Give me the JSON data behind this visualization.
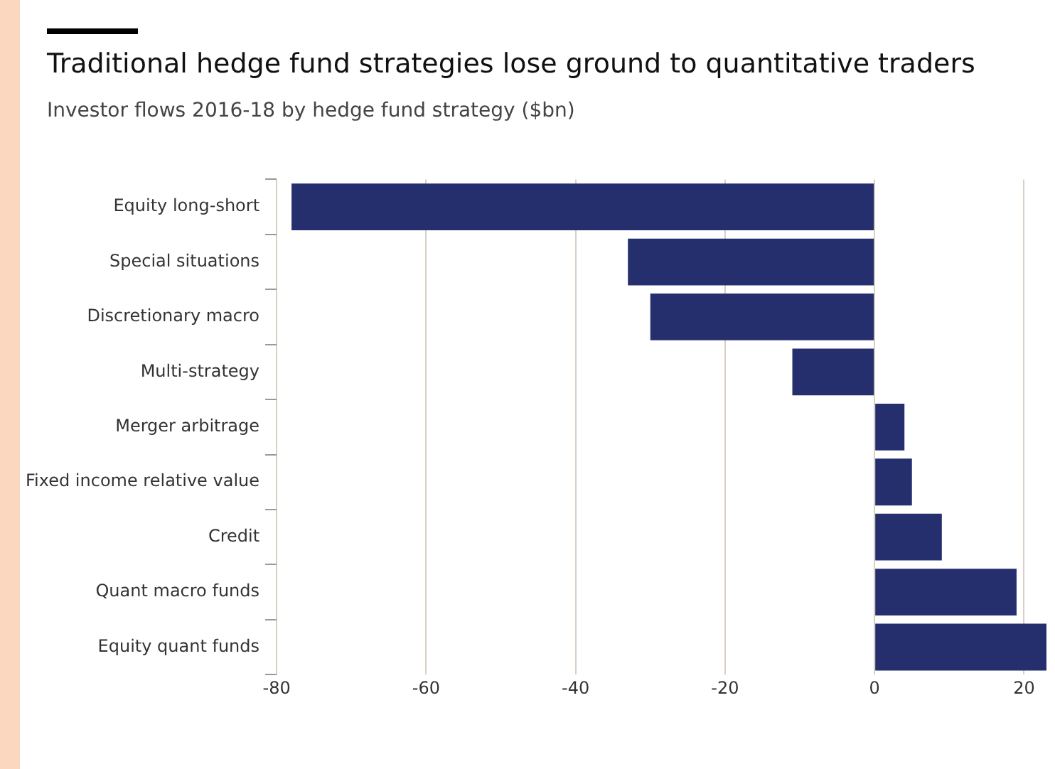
{
  "chart_data": {
    "type": "bar",
    "orientation": "horizontal",
    "title": "Traditional hedge fund strategies lose ground to quantitative traders",
    "subtitle": "Investor flows 2016-18 by hedge fund strategy ($bn)",
    "categories": [
      "Equity long-short",
      "Special situations",
      "Discretionary macro",
      "Multi-strategy",
      "Merger arbitrage",
      "Fixed income relative value",
      "Credit",
      "Quant macro funds",
      "Equity quant funds"
    ],
    "values": [
      -78,
      -33,
      -30,
      -11,
      4,
      5,
      9,
      19,
      23
    ],
    "color": "#262f6e",
    "xlim": [
      -80,
      23
    ],
    "xticks": [
      -80,
      -60,
      -40,
      -20,
      0,
      20
    ],
    "grid": "x",
    "legend": false
  }
}
